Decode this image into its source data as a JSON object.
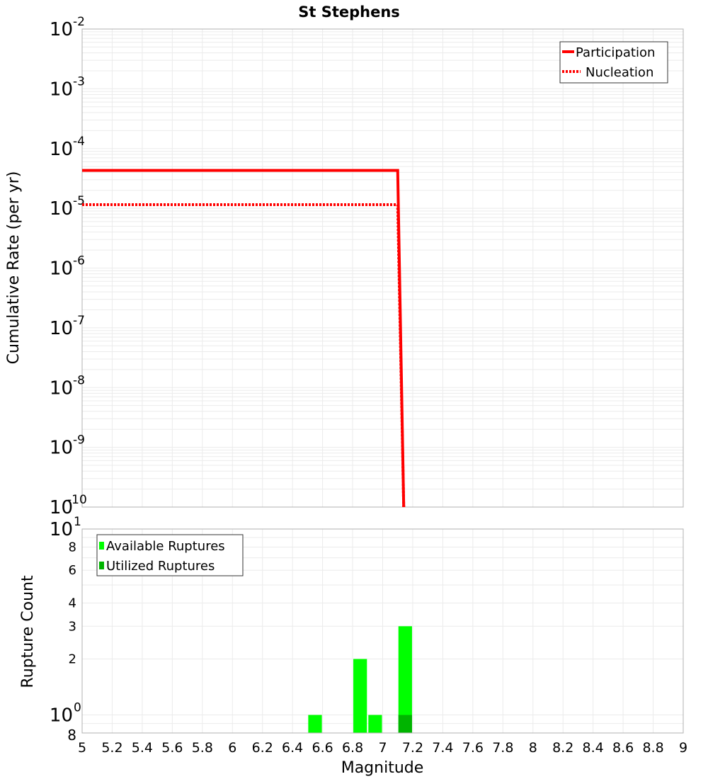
{
  "chart_data": [
    {
      "type": "line",
      "title": "St Stephens",
      "xlabel": "Magnitude",
      "ylabel": "Cumulative Rate (per yr)",
      "yscale": "log",
      "xlim": [
        5,
        9
      ],
      "ylim": [
        1e-10,
        0.01
      ],
      "grid": true,
      "legend_position": "upper right",
      "yticks": [
        "10^-2",
        "10^-3",
        "10^-4",
        "10^-5",
        "10^-6",
        "10^-7",
        "10^-8",
        "10^-9",
        "10^-10"
      ],
      "series": [
        {
          "name": "Participation",
          "style": "solid",
          "color": "#ff0000",
          "x": [
            5.0,
            7.1,
            7.14
          ],
          "y": [
            4.3e-05,
            4.3e-05,
            1e-10
          ]
        },
        {
          "name": "Nucleation",
          "style": "dotted",
          "color": "#ff0000",
          "x": [
            5.0,
            7.1,
            7.14
          ],
          "y": [
            1.15e-05,
            1.15e-05,
            1e-10
          ]
        }
      ]
    },
    {
      "type": "bar",
      "xlabel": "Magnitude",
      "ylabel": "Rupture Count",
      "yscale": "log",
      "xlim": [
        5,
        9
      ],
      "ylim": [
        0.8,
        10
      ],
      "grid": true,
      "legend_position": "upper left",
      "xticks": [
        "5",
        "5.2",
        "5.4",
        "5.6",
        "5.8",
        "6",
        "6.2",
        "6.4",
        "6.6",
        "6.8",
        "7",
        "7.2",
        "7.4",
        "7.6",
        "7.8",
        "8",
        "8.2",
        "8.4",
        "8.6",
        "8.8",
        "9"
      ],
      "yticks": [
        "8",
        "10^0",
        "2",
        "3",
        "4",
        "6",
        "8",
        "10^1"
      ],
      "bin_width": 0.1,
      "categories": [
        6.55,
        6.85,
        6.95,
        7.15
      ],
      "series": [
        {
          "name": "Available Ruptures",
          "color": "#00ff00",
          "values": [
            1,
            2,
            1,
            3
          ]
        },
        {
          "name": "Utilized Ruptures",
          "color": "#00b400",
          "values": [
            0,
            0,
            0,
            1
          ]
        }
      ]
    }
  ],
  "labels": {
    "title": "St Stephens",
    "xlabel": "Magnitude",
    "top_ylabel": "Cumulative Rate (per yr)",
    "bottom_ylabel": "Rupture Count",
    "legend_top": [
      "Participation",
      "Nucleation"
    ],
    "legend_bottom": [
      "Available Ruptures",
      "Utilized Ruptures"
    ]
  }
}
